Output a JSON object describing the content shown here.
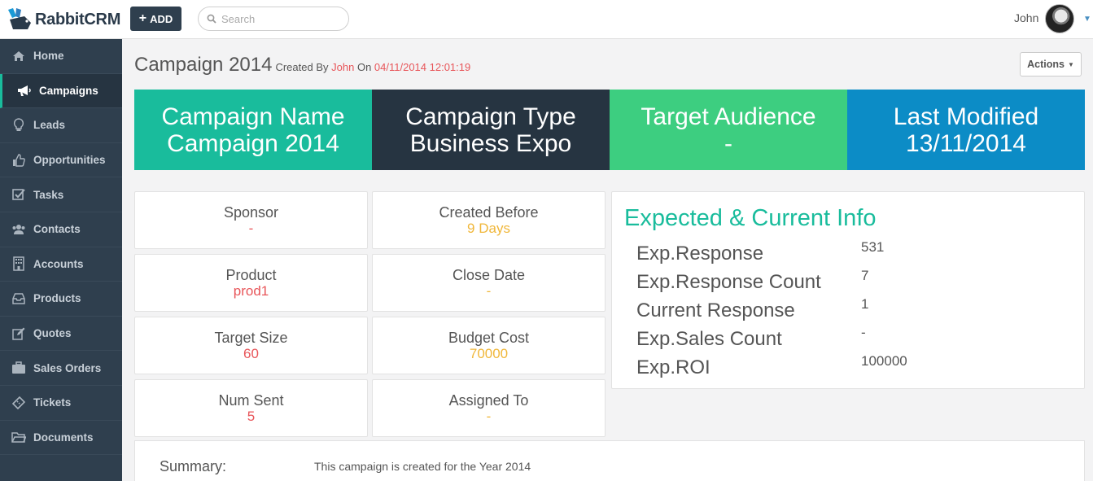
{
  "brand": {
    "name": "RabbitCRM"
  },
  "topbar": {
    "add_label": "ADD",
    "search_placeholder": "Search",
    "user_name": "John"
  },
  "sidebar": {
    "items": [
      {
        "label": "Home",
        "icon": "home-icon"
      },
      {
        "label": "Campaigns",
        "icon": "bullhorn-icon",
        "active": true
      },
      {
        "label": "Leads",
        "icon": "lightbulb-icon"
      },
      {
        "label": "Opportunities",
        "icon": "thumbs-up-icon"
      },
      {
        "label": "Tasks",
        "icon": "checkbox-icon"
      },
      {
        "label": "Contacts",
        "icon": "users-icon"
      },
      {
        "label": "Accounts",
        "icon": "building-icon"
      },
      {
        "label": "Products",
        "icon": "inbox-icon"
      },
      {
        "label": "Quotes",
        "icon": "edit-icon"
      },
      {
        "label": "Sales Orders",
        "icon": "briefcase-icon"
      },
      {
        "label": "Tickets",
        "icon": "ticket-icon"
      },
      {
        "label": "Documents",
        "icon": "folder-icon"
      }
    ]
  },
  "header": {
    "title": "Campaign 2014",
    "created_by_prefix": "Created By",
    "creator": "John",
    "on_prefix": "On",
    "created_on": "04/11/2014 12:01:19",
    "actions_label": "Actions"
  },
  "tiles": [
    {
      "label": "Campaign Name",
      "value": "Campaign 2014",
      "color": "#19bc9c"
    },
    {
      "label": "Campaign Type",
      "value": "Business Expo",
      "color": "#263441"
    },
    {
      "label": "Target Audience",
      "value": "-",
      "color": "#3dce80"
    },
    {
      "label": "Last Modified",
      "value": "13/11/2014",
      "color": "#0c8cc6"
    }
  ],
  "cards": [
    {
      "label": "Sponsor",
      "value": "-",
      "tone": "red"
    },
    {
      "label": "Created Before",
      "value": "9 Days",
      "tone": "yellow"
    },
    {
      "label": "Product",
      "value": "prod1",
      "tone": "red"
    },
    {
      "label": "Close Date",
      "value": "-",
      "tone": "yellow"
    },
    {
      "label": "Target Size",
      "value": "60",
      "tone": "red"
    },
    {
      "label": "Budget Cost",
      "value": "70000",
      "tone": "yellow"
    },
    {
      "label": "Num Sent",
      "value": "5",
      "tone": "red"
    },
    {
      "label": "Assigned To",
      "value": "-",
      "tone": "yellow"
    }
  ],
  "info": {
    "title": "Expected & Current Info",
    "rows": [
      {
        "label": "Exp.Response",
        "value": "531"
      },
      {
        "label": "Exp.Response Count",
        "value": "7"
      },
      {
        "label": "Current Response",
        "value": "1"
      },
      {
        "label": "Exp.Sales Count",
        "value": "-"
      },
      {
        "label": "Exp.ROI",
        "value": "100000"
      }
    ]
  },
  "summary": {
    "label": "Summary:",
    "text": "This campaign is created for the Year 2014"
  }
}
